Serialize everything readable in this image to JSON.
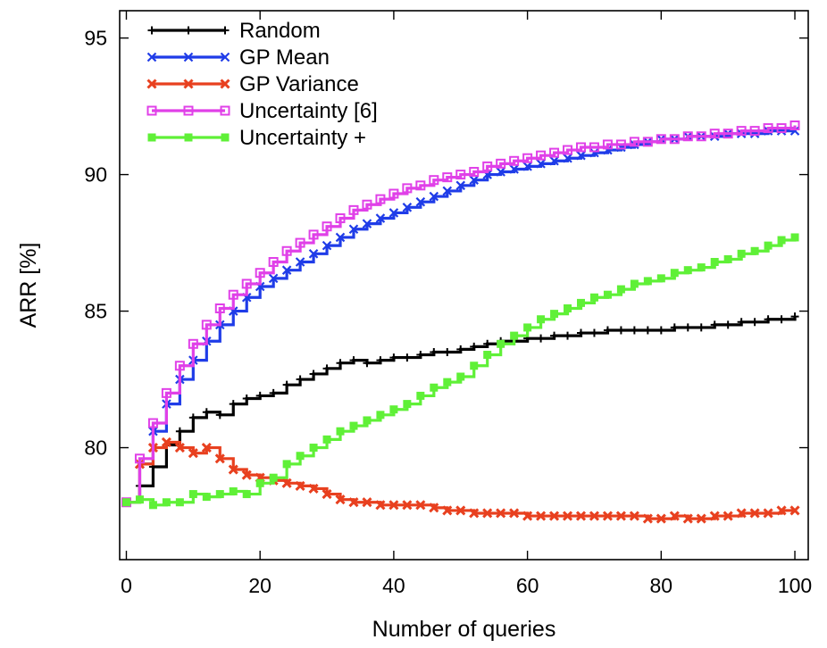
{
  "chart_data": {
    "type": "line",
    "title": "",
    "xlabel": "Number of queries",
    "ylabel": "ARR [%]",
    "xlim": [
      -1,
      102
    ],
    "ylim": [
      75.9,
      96
    ],
    "xticks": [
      0,
      20,
      40,
      60,
      80,
      100
    ],
    "yticks": [
      80,
      85,
      90,
      95
    ],
    "grid": false,
    "legend_position": "top-left",
    "series": [
      {
        "name": "Random",
        "color": "#000000",
        "marker": "plus",
        "x": [
          0,
          2,
          4,
          6,
          8,
          10,
          12,
          14,
          16,
          18,
          20,
          22,
          24,
          26,
          28,
          30,
          32,
          34,
          36,
          38,
          40,
          42,
          44,
          46,
          48,
          50,
          52,
          54,
          56,
          58,
          60,
          62,
          64,
          66,
          68,
          70,
          72,
          74,
          76,
          78,
          80,
          82,
          84,
          86,
          88,
          90,
          92,
          94,
          96,
          98,
          100
        ],
        "values": [
          78.0,
          78.6,
          79.3,
          80.1,
          80.6,
          81.1,
          81.3,
          81.2,
          81.6,
          81.8,
          81.9,
          82.0,
          82.3,
          82.5,
          82.7,
          82.9,
          83.1,
          83.2,
          83.1,
          83.2,
          83.3,
          83.3,
          83.4,
          83.5,
          83.5,
          83.6,
          83.7,
          83.8,
          83.9,
          83.9,
          84.0,
          84.0,
          84.1,
          84.1,
          84.2,
          84.2,
          84.3,
          84.3,
          84.3,
          84.3,
          84.3,
          84.4,
          84.4,
          84.4,
          84.5,
          84.5,
          84.6,
          84.6,
          84.7,
          84.7,
          84.8
        ]
      },
      {
        "name": "GP Mean",
        "color": "#1f3ce8",
        "marker": "x",
        "x": [
          0,
          2,
          4,
          6,
          8,
          10,
          12,
          14,
          16,
          18,
          20,
          22,
          24,
          26,
          28,
          30,
          32,
          34,
          36,
          38,
          40,
          42,
          44,
          46,
          48,
          50,
          52,
          54,
          56,
          58,
          60,
          62,
          64,
          66,
          68,
          70,
          72,
          74,
          76,
          78,
          80,
          82,
          84,
          86,
          88,
          90,
          92,
          94,
          96,
          98,
          100
        ],
        "values": [
          78.0,
          79.4,
          80.6,
          81.6,
          82.5,
          83.2,
          83.9,
          84.5,
          85.0,
          85.5,
          85.9,
          86.2,
          86.5,
          86.8,
          87.1,
          87.4,
          87.7,
          88.0,
          88.2,
          88.4,
          88.6,
          88.8,
          89.0,
          89.2,
          89.4,
          89.6,
          89.8,
          90.0,
          90.1,
          90.2,
          90.3,
          90.4,
          90.5,
          90.6,
          90.7,
          90.8,
          90.9,
          91.0,
          91.1,
          91.2,
          91.3,
          91.3,
          91.4,
          91.4,
          91.4,
          91.5,
          91.5,
          91.5,
          91.6,
          91.6,
          91.6
        ]
      },
      {
        "name": "GP Variance",
        "color": "#e8401f",
        "marker": "x-bold",
        "x": [
          0,
          2,
          4,
          6,
          8,
          10,
          12,
          14,
          16,
          18,
          20,
          22,
          24,
          26,
          28,
          30,
          32,
          34,
          36,
          38,
          40,
          42,
          44,
          46,
          48,
          50,
          52,
          54,
          56,
          58,
          60,
          62,
          64,
          66,
          68,
          70,
          72,
          74,
          76,
          78,
          80,
          82,
          84,
          86,
          88,
          90,
          92,
          94,
          96,
          98,
          100
        ],
        "values": [
          78.0,
          79.4,
          80.0,
          80.2,
          80.0,
          79.8,
          80.0,
          79.6,
          79.2,
          79.0,
          78.9,
          78.8,
          78.7,
          78.6,
          78.5,
          78.3,
          78.1,
          78.0,
          78.0,
          77.9,
          77.9,
          77.9,
          77.9,
          77.8,
          77.7,
          77.7,
          77.6,
          77.6,
          77.6,
          77.6,
          77.5,
          77.5,
          77.5,
          77.5,
          77.5,
          77.5,
          77.5,
          77.5,
          77.5,
          77.4,
          77.4,
          77.5,
          77.4,
          77.4,
          77.5,
          77.5,
          77.6,
          77.6,
          77.6,
          77.7,
          77.7
        ]
      },
      {
        "name": "Uncertainty [6]",
        "color": "#e040e8",
        "marker": "square-open",
        "x": [
          0,
          2,
          4,
          6,
          8,
          10,
          12,
          14,
          16,
          18,
          20,
          22,
          24,
          26,
          28,
          30,
          32,
          34,
          36,
          38,
          40,
          42,
          44,
          46,
          48,
          50,
          52,
          54,
          56,
          58,
          60,
          62,
          64,
          66,
          68,
          70,
          72,
          74,
          76,
          78,
          80,
          82,
          84,
          86,
          88,
          90,
          92,
          94,
          96,
          98,
          100
        ],
        "values": [
          78.0,
          79.6,
          80.9,
          82.0,
          83.0,
          83.8,
          84.5,
          85.1,
          85.6,
          86.0,
          86.4,
          86.8,
          87.2,
          87.5,
          87.8,
          88.1,
          88.4,
          88.7,
          88.9,
          89.1,
          89.3,
          89.5,
          89.6,
          89.8,
          89.9,
          90.0,
          90.1,
          90.3,
          90.4,
          90.5,
          90.6,
          90.7,
          90.8,
          90.9,
          91.0,
          91.0,
          91.1,
          91.1,
          91.2,
          91.2,
          91.3,
          91.3,
          91.4,
          91.4,
          91.5,
          91.5,
          91.6,
          91.6,
          91.7,
          91.7,
          91.8
        ]
      },
      {
        "name": "Uncertainty +",
        "color": "#5ff037",
        "marker": "square-filled",
        "x": [
          0,
          2,
          4,
          6,
          8,
          10,
          12,
          14,
          16,
          18,
          20,
          22,
          24,
          26,
          28,
          30,
          32,
          34,
          36,
          38,
          40,
          42,
          44,
          46,
          48,
          50,
          52,
          54,
          56,
          58,
          60,
          62,
          64,
          66,
          68,
          70,
          72,
          74,
          76,
          78,
          80,
          82,
          84,
          86,
          88,
          90,
          92,
          94,
          96,
          98,
          100
        ],
        "values": [
          78.0,
          78.1,
          77.9,
          78.0,
          78.0,
          78.3,
          78.2,
          78.3,
          78.4,
          78.3,
          78.7,
          78.9,
          79.4,
          79.7,
          80.0,
          80.3,
          80.6,
          80.8,
          81.0,
          81.2,
          81.4,
          81.6,
          81.9,
          82.2,
          82.4,
          82.6,
          83.0,
          83.4,
          83.8,
          84.1,
          84.4,
          84.7,
          84.9,
          85.1,
          85.3,
          85.5,
          85.6,
          85.8,
          86.0,
          86.1,
          86.2,
          86.4,
          86.5,
          86.6,
          86.8,
          86.9,
          87.1,
          87.2,
          87.4,
          87.6,
          87.7
        ]
      }
    ]
  }
}
